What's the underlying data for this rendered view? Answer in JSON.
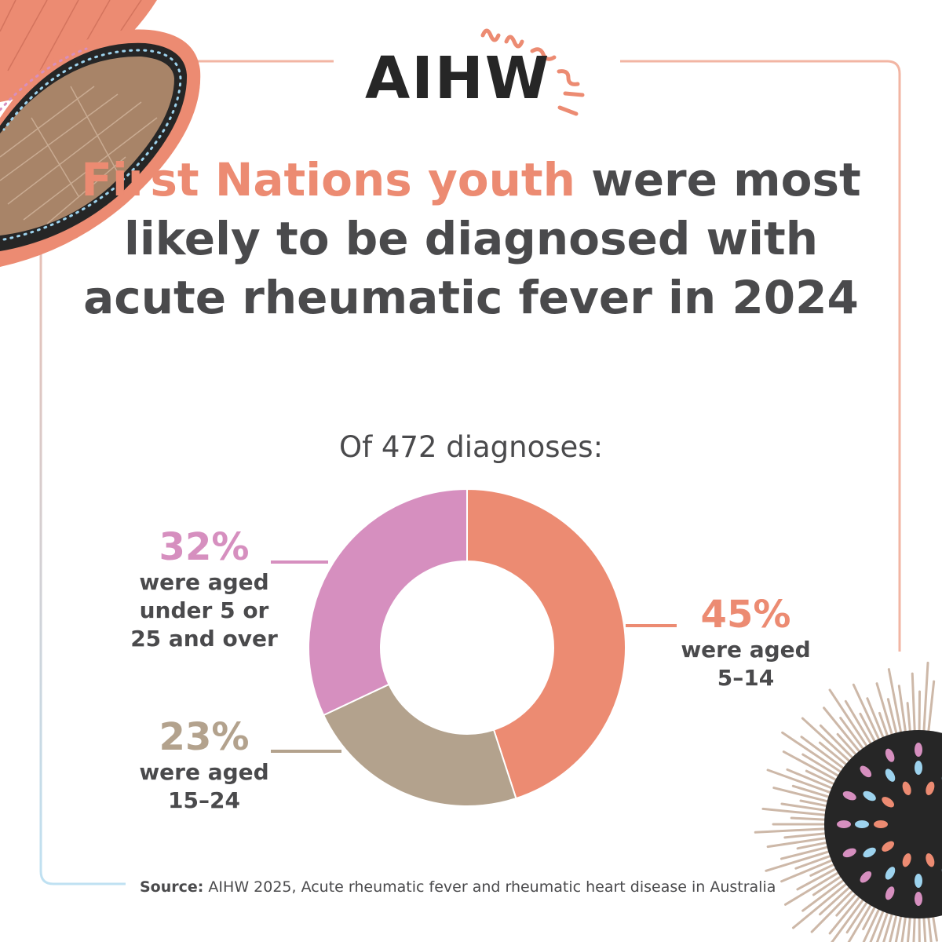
{
  "logo": {
    "text": "AIHW"
  },
  "headline": {
    "highlight": "First Nations youth",
    "rest": " were most likely to be diagnosed with acute rheumatic fever in 2024"
  },
  "subtitle": "Of 472 diagnoses:",
  "colors": {
    "salmon": "#ec8b72",
    "pink": "#d68fbf",
    "taupe": "#b3a28d",
    "text": "#4a4a4c"
  },
  "chart_data": {
    "type": "pie",
    "donut": true,
    "title": "Of 472 diagnoses:",
    "total": 472,
    "slices": [
      {
        "value": 45,
        "pct_label": "45%",
        "desc": "were aged 5–14",
        "color": "#ec8b72"
      },
      {
        "value": 23,
        "pct_label": "23%",
        "desc": "were aged 15–24",
        "color": "#b3a28d"
      },
      {
        "value": 32,
        "pct_label": "32%",
        "desc": "were aged under 5 or 25 and over",
        "color": "#d68fbf"
      }
    ]
  },
  "source": {
    "label": "Source:",
    "text": " AIHW 2025, Acute rheumatic fever and rheumatic heart disease in Australia"
  }
}
